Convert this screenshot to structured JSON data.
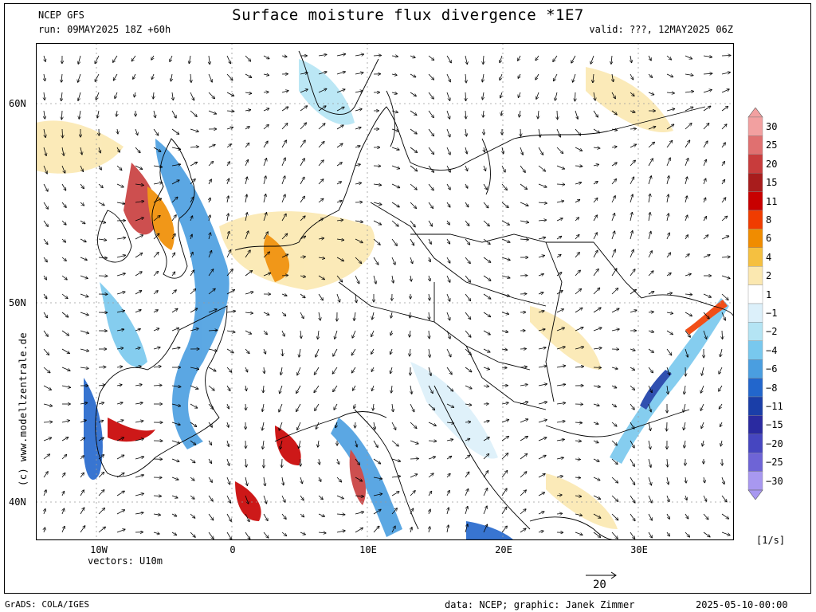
{
  "header": {
    "model": "NCEP GFS",
    "run": "run: 09MAY2025 18Z +60h",
    "title": "Surface moisture flux divergence *1E7",
    "valid": "valid: ???, 12MAY2025 06Z"
  },
  "axes": {
    "lat_labels": [
      "60N",
      "50N",
      "40N"
    ],
    "lon_labels": [
      "10W",
      "0",
      "10E",
      "20E",
      "30E"
    ],
    "vectors_label": "vectors: U10m"
  },
  "colorbar": {
    "levels": [
      "30",
      "25",
      "20",
      "15",
      "11",
      "8",
      "6",
      "4",
      "2",
      "1",
      "−1",
      "−2",
      "−4",
      "−6",
      "−8",
      "−11",
      "−15",
      "−20",
      "−25",
      "−30"
    ],
    "colors": [
      "#f2a0a0",
      "#e07070",
      "#c83c3c",
      "#a81c1c",
      "#c80000",
      "#f03c00",
      "#f08c00",
      "#f5c040",
      "#fbe8b0",
      "#ffffff",
      "#dcf0fa",
      "#b4e4f4",
      "#78c8ee",
      "#4a9ee0",
      "#2266cc",
      "#1a3ea8",
      "#2a2aa0",
      "#4646c0",
      "#6e64d6",
      "#a898f0"
    ],
    "units": "[1/s]"
  },
  "vector_ref": {
    "value": "20"
  },
  "watermark": "(c) www.modellzentrale.de",
  "footer": {
    "grads": "GrADS: COLA/IGES",
    "credits": "data: NCEP; graphic: Janek Zimmer",
    "date": "2025-05-10-00:00"
  }
}
